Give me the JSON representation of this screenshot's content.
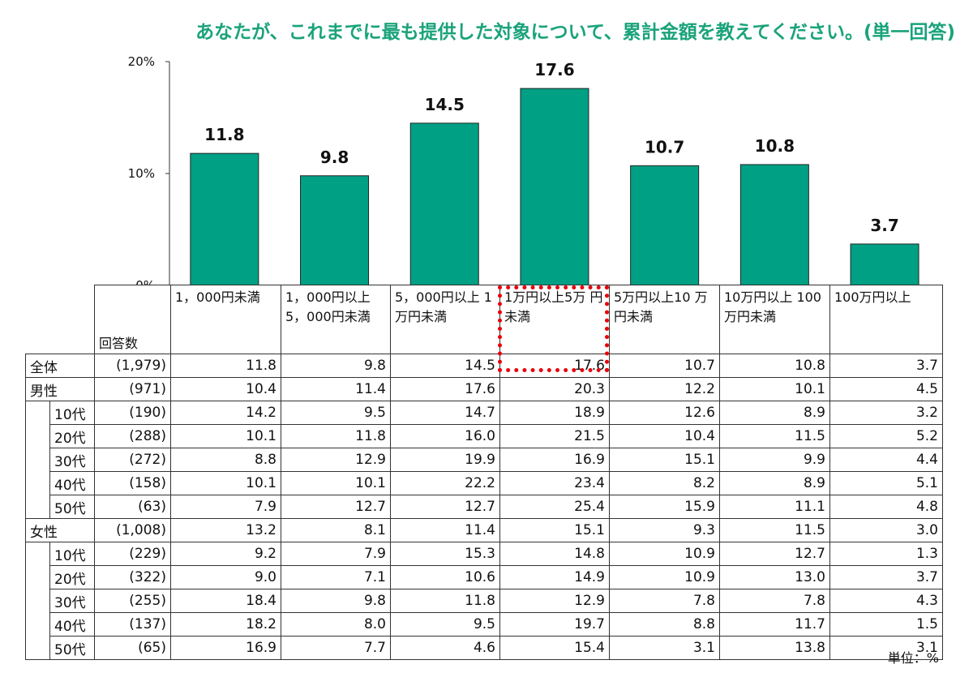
{
  "title": "あなたが、これまでに最も提供した対象について、累計金額を教えてください。(単一回答)",
  "unit_label": "単位：%",
  "n_header": "回答数",
  "colors": {
    "bar": "#00a084",
    "title": "#1aa37a",
    "highlight": "#e8000b"
  },
  "chart_data": {
    "type": "bar",
    "title": "",
    "categories": [
      "1，000円未満",
      "1，000円以上5，000円未満",
      "5，000円以上1万円未満",
      "1万円以上5万円未満",
      "5万円以上10万円未満",
      "10万円以上100万円未満",
      "100万円以上"
    ],
    "values": [
      11.8,
      9.8,
      14.5,
      17.6,
      10.7,
      10.8,
      3.7
    ],
    "value_labels": [
      "11.8",
      "9.8",
      "14.5",
      "17.6",
      "10.7",
      "10.8",
      "3.7"
    ],
    "ylim": [
      0,
      20
    ],
    "yticks": [
      0,
      10,
      20
    ],
    "ytick_labels": [
      "0%",
      "10%",
      "20%"
    ],
    "grid": false,
    "legend": "none",
    "highlighted_category": "1万円以上5万円未満"
  },
  "table": {
    "columns": [
      "1，000円未満",
      "1，000円以上 5，000円未満",
      "5，000円以上 1万円未満",
      "1万円以上5万 円未満",
      "5万円以上10 万円未満",
      "10万円以上 100万円未満",
      "100万円以上"
    ],
    "rows": [
      {
        "group": "全体",
        "age": "",
        "n": "(1,979)",
        "values": [
          "11.8",
          "9.8",
          "14.5",
          "17.6",
          "10.7",
          "10.8",
          "3.7"
        ]
      },
      {
        "group": "男性",
        "age": "",
        "n": "(971)",
        "values": [
          "10.4",
          "11.4",
          "17.6",
          "20.3",
          "12.2",
          "10.1",
          "4.5"
        ]
      },
      {
        "group": "",
        "age": "10代",
        "n": "(190)",
        "values": [
          "14.2",
          "9.5",
          "14.7",
          "18.9",
          "12.6",
          "8.9",
          "3.2"
        ]
      },
      {
        "group": "",
        "age": "20代",
        "n": "(288)",
        "values": [
          "10.1",
          "11.8",
          "16.0",
          "21.5",
          "10.4",
          "11.5",
          "5.2"
        ]
      },
      {
        "group": "",
        "age": "30代",
        "n": "(272)",
        "values": [
          "8.8",
          "12.9",
          "19.9",
          "16.9",
          "15.1",
          "9.9",
          "4.4"
        ]
      },
      {
        "group": "",
        "age": "40代",
        "n": "(158)",
        "values": [
          "10.1",
          "10.1",
          "22.2",
          "23.4",
          "8.2",
          "8.9",
          "5.1"
        ]
      },
      {
        "group": "",
        "age": "50代",
        "n": "(63)",
        "values": [
          "7.9",
          "12.7",
          "12.7",
          "25.4",
          "15.9",
          "11.1",
          "4.8"
        ]
      },
      {
        "group": "女性",
        "age": "",
        "n": "(1,008)",
        "values": [
          "13.2",
          "8.1",
          "11.4",
          "15.1",
          "9.3",
          "11.5",
          "3.0"
        ]
      },
      {
        "group": "",
        "age": "10代",
        "n": "(229)",
        "values": [
          "9.2",
          "7.9",
          "15.3",
          "14.8",
          "10.9",
          "12.7",
          "1.3"
        ]
      },
      {
        "group": "",
        "age": "20代",
        "n": "(322)",
        "values": [
          "9.0",
          "7.1",
          "10.6",
          "14.9",
          "10.9",
          "13.0",
          "3.7"
        ]
      },
      {
        "group": "",
        "age": "30代",
        "n": "(255)",
        "values": [
          "18.4",
          "9.8",
          "11.8",
          "12.9",
          "7.8",
          "7.8",
          "4.3"
        ]
      },
      {
        "group": "",
        "age": "40代",
        "n": "(137)",
        "values": [
          "18.2",
          "8.0",
          "9.5",
          "19.7",
          "8.8",
          "11.7",
          "1.5"
        ]
      },
      {
        "group": "",
        "age": "50代",
        "n": "(65)",
        "values": [
          "16.9",
          "7.7",
          "4.6",
          "15.4",
          "3.1",
          "13.8",
          "3.1"
        ]
      }
    ]
  }
}
